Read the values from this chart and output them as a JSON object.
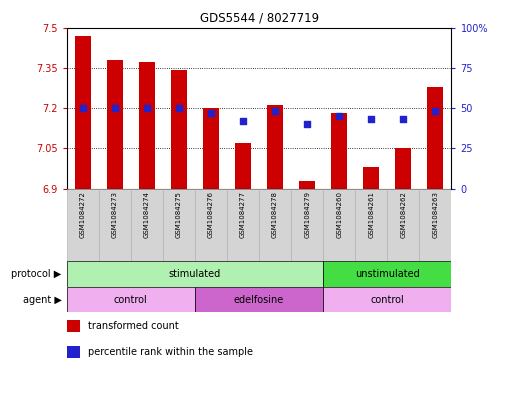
{
  "title": "GDS5544 / 8027719",
  "samples": [
    "GSM1084272",
    "GSM1084273",
    "GSM1084274",
    "GSM1084275",
    "GSM1084276",
    "GSM1084277",
    "GSM1084278",
    "GSM1084279",
    "GSM1084260",
    "GSM1084261",
    "GSM1084262",
    "GSM1084263"
  ],
  "transformed_count": [
    7.47,
    7.38,
    7.37,
    7.34,
    7.2,
    7.07,
    7.21,
    6.93,
    7.18,
    6.98,
    7.05,
    7.28
  ],
  "percentile_rank": [
    50,
    50,
    50,
    50,
    47,
    42,
    48,
    40,
    45,
    43,
    43,
    48
  ],
  "ylim_left": [
    6.9,
    7.5
  ],
  "ylim_right": [
    0,
    100
  ],
  "yticks_left": [
    6.9,
    7.05,
    7.2,
    7.35,
    7.5
  ],
  "ytick_labels_left": [
    "6.9",
    "7.05",
    "7.2",
    "7.35",
    "7.5"
  ],
  "yticks_right": [
    0,
    25,
    50,
    75,
    100
  ],
  "ytick_labels_right": [
    "0",
    "25",
    "50",
    "75",
    "100%"
  ],
  "hlines": [
    7.05,
    7.2,
    7.35
  ],
  "bar_color": "#cc0000",
  "dot_color": "#2222cc",
  "bar_width": 0.5,
  "dot_size": 25,
  "protocol_groups": [
    {
      "label": "stimulated",
      "start": 0,
      "end": 8,
      "color": "#b0f0b0"
    },
    {
      "label": "unstimulated",
      "start": 8,
      "end": 12,
      "color": "#44dd44"
    }
  ],
  "agent_groups": [
    {
      "label": "control",
      "start": 0,
      "end": 4,
      "color": "#f0b0f0"
    },
    {
      "label": "edelfosine",
      "start": 4,
      "end": 8,
      "color": "#cc66cc"
    },
    {
      "label": "control",
      "start": 8,
      "end": 12,
      "color": "#f0b0f0"
    }
  ],
  "protocol_label": "protocol",
  "agent_label": "agent",
  "legend_items": [
    {
      "color": "#cc0000",
      "label": "transformed count"
    },
    {
      "color": "#2222cc",
      "label": "percentile rank within the sample"
    }
  ],
  "fig_width": 5.13,
  "fig_height": 3.93,
  "dpi": 100
}
